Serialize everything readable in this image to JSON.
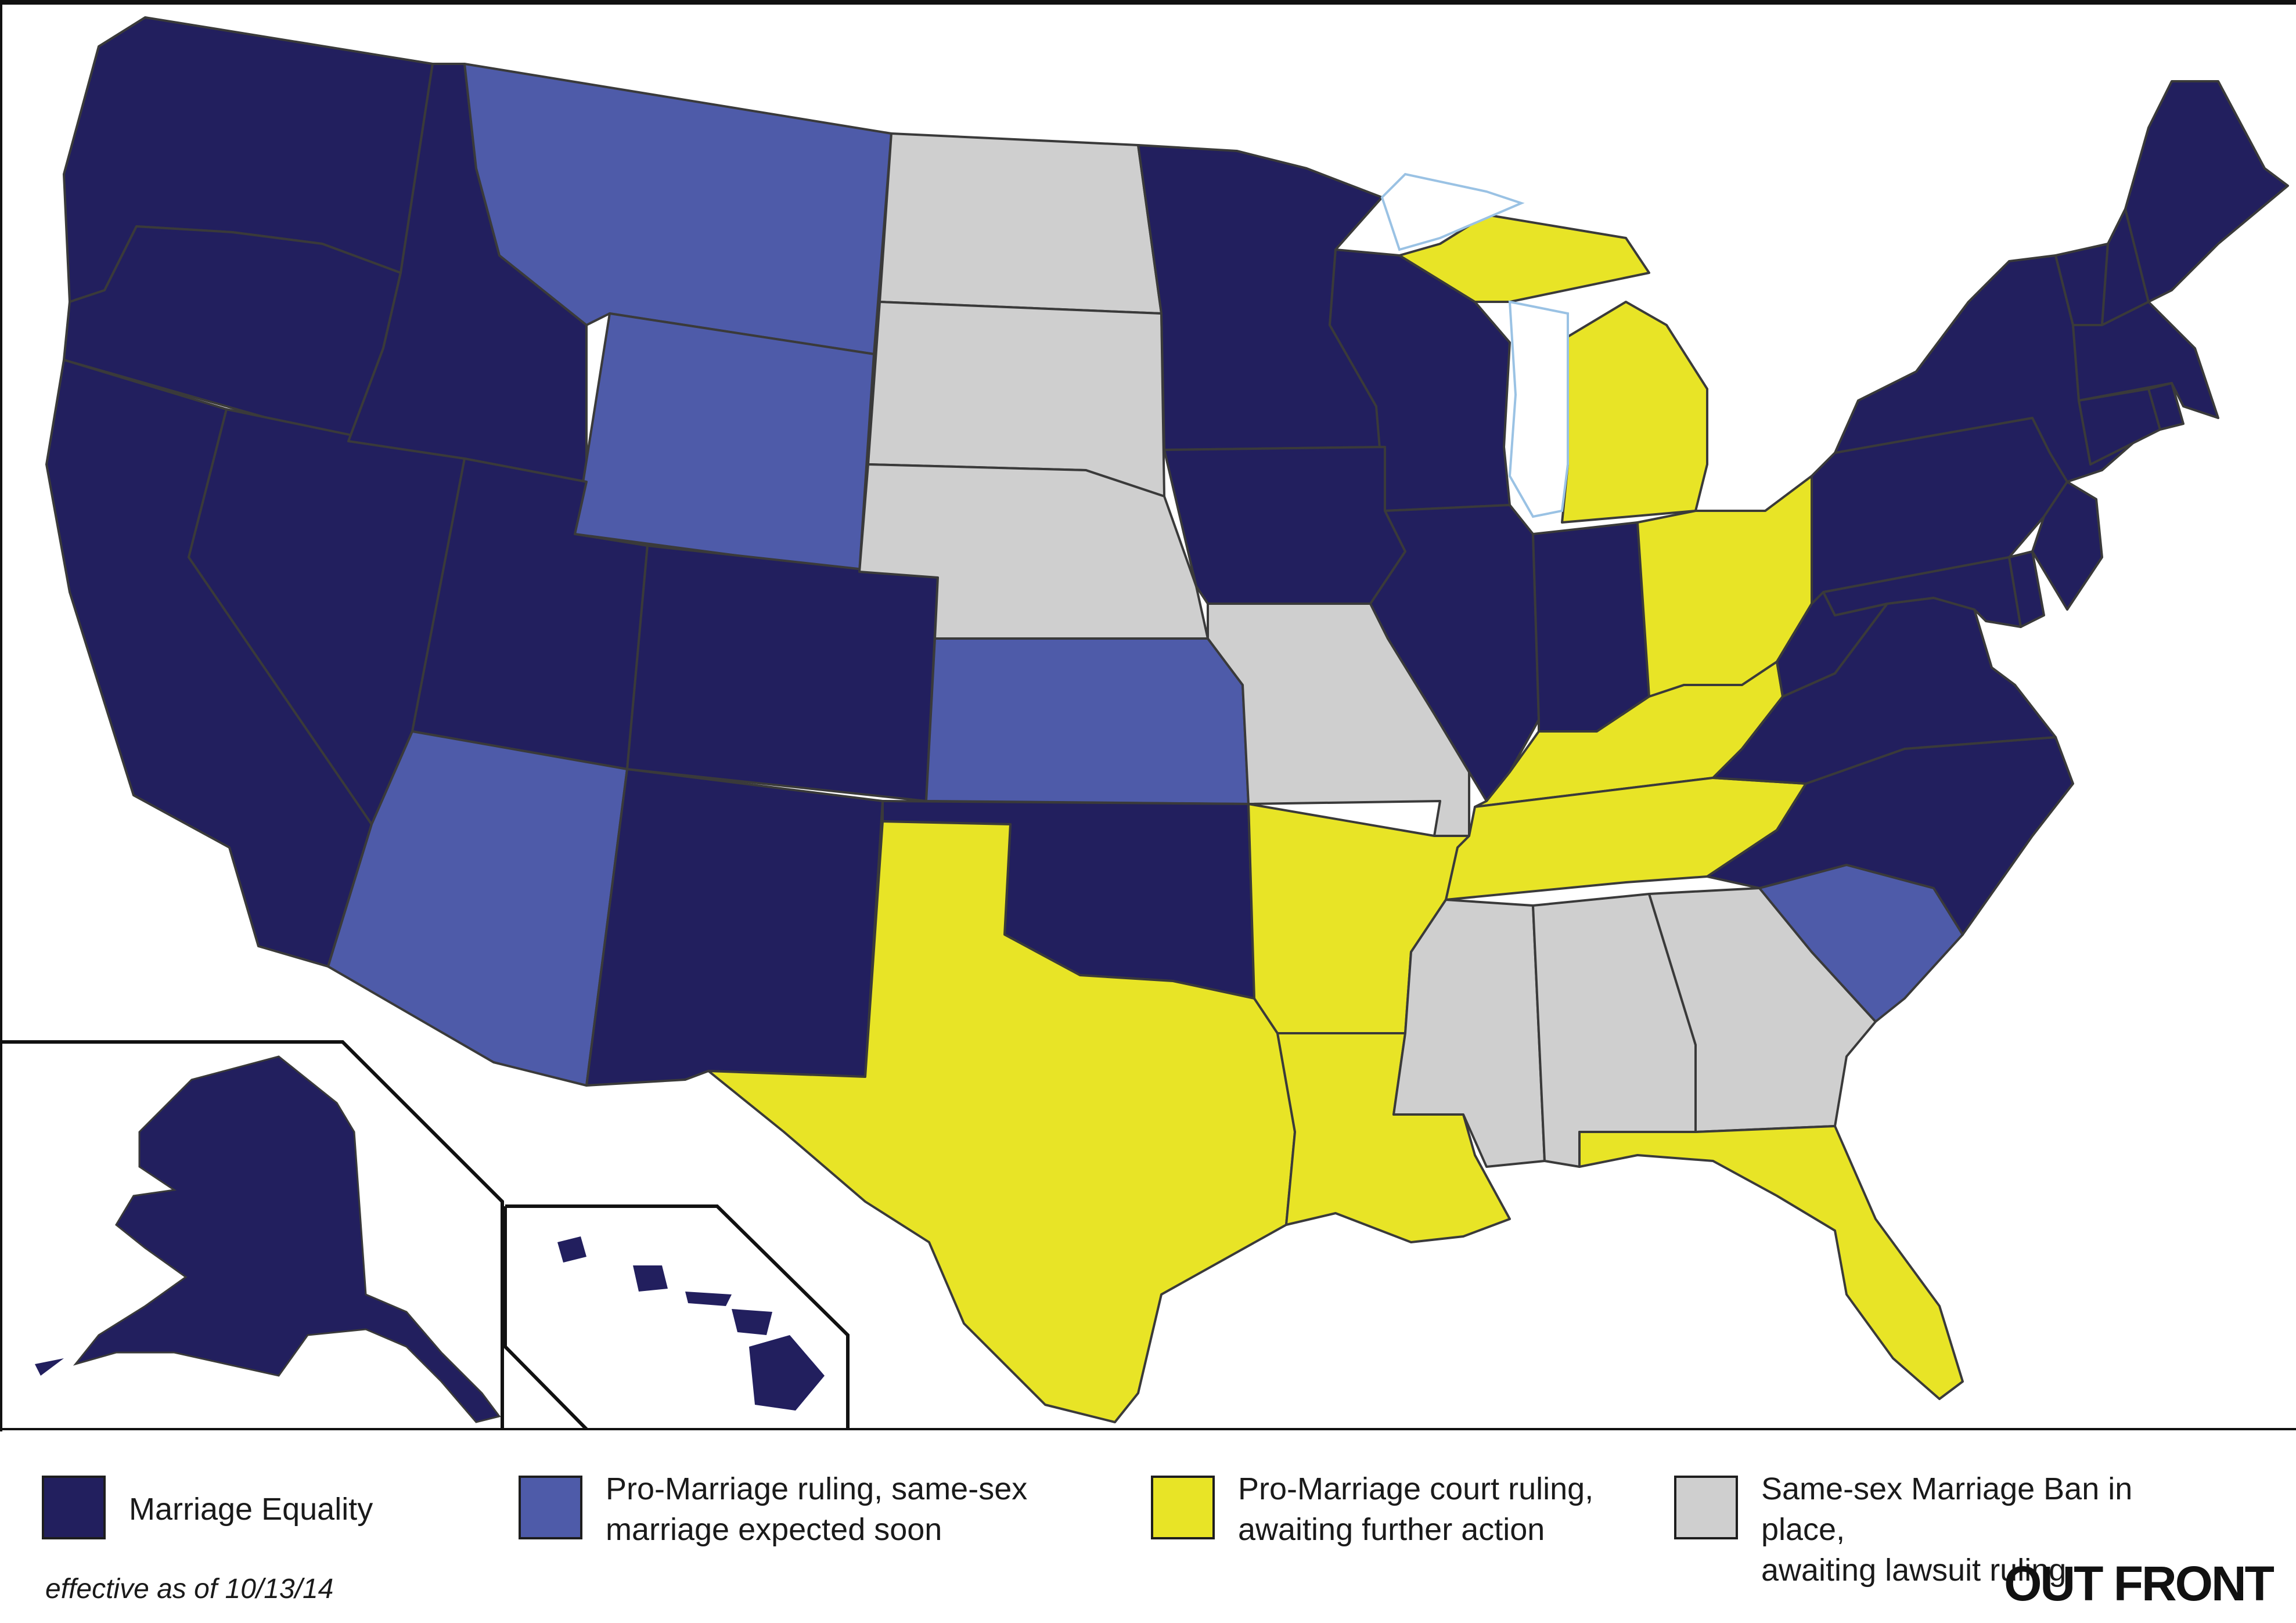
{
  "colors": {
    "marriage_equality": "#221f5e",
    "pro_ruling_expected": "#4e5ba9",
    "court_ruling_awaiting": "#e8e426",
    "ban_in_place": "#cfcfcf",
    "border": "#3a3a3a",
    "water_outline": "#9ac2e4",
    "background": "#ffffff"
  },
  "legend": [
    {
      "category": "marriage_equality",
      "lines": [
        "Marriage Equality"
      ]
    },
    {
      "category": "pro_ruling_expected",
      "lines": [
        "Pro-Marriage ruling, same-sex",
        "marriage expected soon"
      ]
    },
    {
      "category": "court_ruling_awaiting",
      "lines": [
        "Pro-Marriage court ruling,",
        "awaiting further action"
      ]
    },
    {
      "category": "ban_in_place",
      "lines": [
        "Same-sex Marriage Ban in place,",
        "awaiting lawsuit ruling"
      ]
    }
  ],
  "effective_note": "effective as of 10/13/14",
  "brand": "OUT FRONT",
  "states": {
    "WA": "marriage_equality",
    "OR": "marriage_equality",
    "CA": "marriage_equality",
    "NV": "marriage_equality",
    "ID": "marriage_equality",
    "UT": "marriage_equality",
    "CO": "marriage_equality",
    "NM": "marriage_equality",
    "OK": "marriage_equality",
    "MN": "marriage_equality",
    "WI": "marriage_equality",
    "IA": "marriage_equality",
    "IL": "marriage_equality",
    "IN": "marriage_equality",
    "PA": "marriage_equality",
    "NY": "marriage_equality",
    "NJ": "marriage_equality",
    "MD": "marriage_equality",
    "DE": "marriage_equality",
    "VA": "marriage_equality",
    "WV": "marriage_equality",
    "NC": "marriage_equality",
    "VT": "marriage_equality",
    "NH": "marriage_equality",
    "ME": "marriage_equality",
    "MA": "marriage_equality",
    "CT": "marriage_equality",
    "RI": "marriage_equality",
    "AK": "marriage_equality",
    "HI": "marriage_equality",
    "MT": "pro_ruling_expected",
    "WY": "pro_ruling_expected",
    "AZ": "pro_ruling_expected",
    "KS": "pro_ruling_expected",
    "SC": "pro_ruling_expected",
    "TX": "court_ruling_awaiting",
    "AR": "court_ruling_awaiting",
    "LA": "court_ruling_awaiting",
    "TN": "court_ruling_awaiting",
    "KY": "court_ruling_awaiting",
    "OH": "court_ruling_awaiting",
    "MI": "court_ruling_awaiting",
    "FL": "court_ruling_awaiting",
    "ND": "ban_in_place",
    "SD": "ban_in_place",
    "NE": "ban_in_place",
    "MO": "ban_in_place",
    "MS": "ban_in_place",
    "AL": "ban_in_place",
    "GA": "ban_in_place"
  }
}
